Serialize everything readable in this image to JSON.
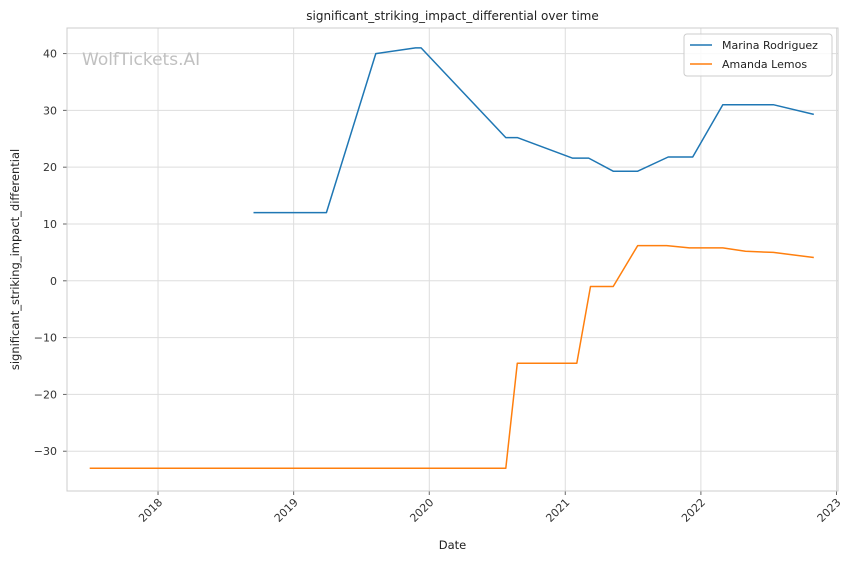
{
  "chart_data": {
    "type": "line",
    "title": "significant_striking_impact_differential over time",
    "xlabel": "Date",
    "ylabel": "significant_striking_impact_differential",
    "watermark": "WolfTickets.AI",
    "x_ticks": [
      "2018",
      "2019",
      "2020",
      "2021",
      "2022",
      "2023"
    ],
    "y_ticks": [
      "−30",
      "−20",
      "−10",
      "0",
      "10",
      "20",
      "30",
      "40"
    ],
    "xlim": [
      "2017-05-01",
      "2023-01-05"
    ],
    "ylim": [
      -37,
      44.5
    ],
    "grid": true,
    "legend_position": "top-right",
    "colors": {
      "Marina Rodriguez": "#1f77b4",
      "Amanda Lemos": "#ff7f0e"
    },
    "series": [
      {
        "name": "Marina Rodriguez",
        "points": [
          [
            "2018-09-15",
            12.0
          ],
          [
            "2019-03-30",
            12.0
          ],
          [
            "2019-08-10",
            40.0
          ],
          [
            "2019-11-25",
            41.0
          ],
          [
            "2019-12-10",
            41.0
          ],
          [
            "2020-07-25",
            25.2
          ],
          [
            "2020-08-25",
            25.2
          ],
          [
            "2021-01-20",
            21.6
          ],
          [
            "2021-03-05",
            21.6
          ],
          [
            "2021-05-10",
            19.3
          ],
          [
            "2021-07-15",
            19.3
          ],
          [
            "2021-10-05",
            21.8
          ],
          [
            "2021-12-10",
            21.8
          ],
          [
            "2022-03-01",
            31.0
          ],
          [
            "2022-07-15",
            31.0
          ],
          [
            "2022-11-01",
            29.3
          ]
        ]
      },
      {
        "name": "Amanda Lemos",
        "points": [
          [
            "2017-07-01",
            -33.0
          ],
          [
            "2020-07-25",
            -33.0
          ],
          [
            "2020-08-25",
            -14.5
          ],
          [
            "2021-02-01",
            -14.5
          ],
          [
            "2021-03-10",
            -1.0
          ],
          [
            "2021-05-10",
            -1.0
          ],
          [
            "2021-07-15",
            6.2
          ],
          [
            "2021-10-01",
            6.2
          ],
          [
            "2021-12-01",
            5.8
          ],
          [
            "2022-03-01",
            5.8
          ],
          [
            "2022-05-01",
            5.2
          ],
          [
            "2022-07-15",
            5.0
          ],
          [
            "2022-11-01",
            4.1
          ]
        ]
      }
    ]
  }
}
